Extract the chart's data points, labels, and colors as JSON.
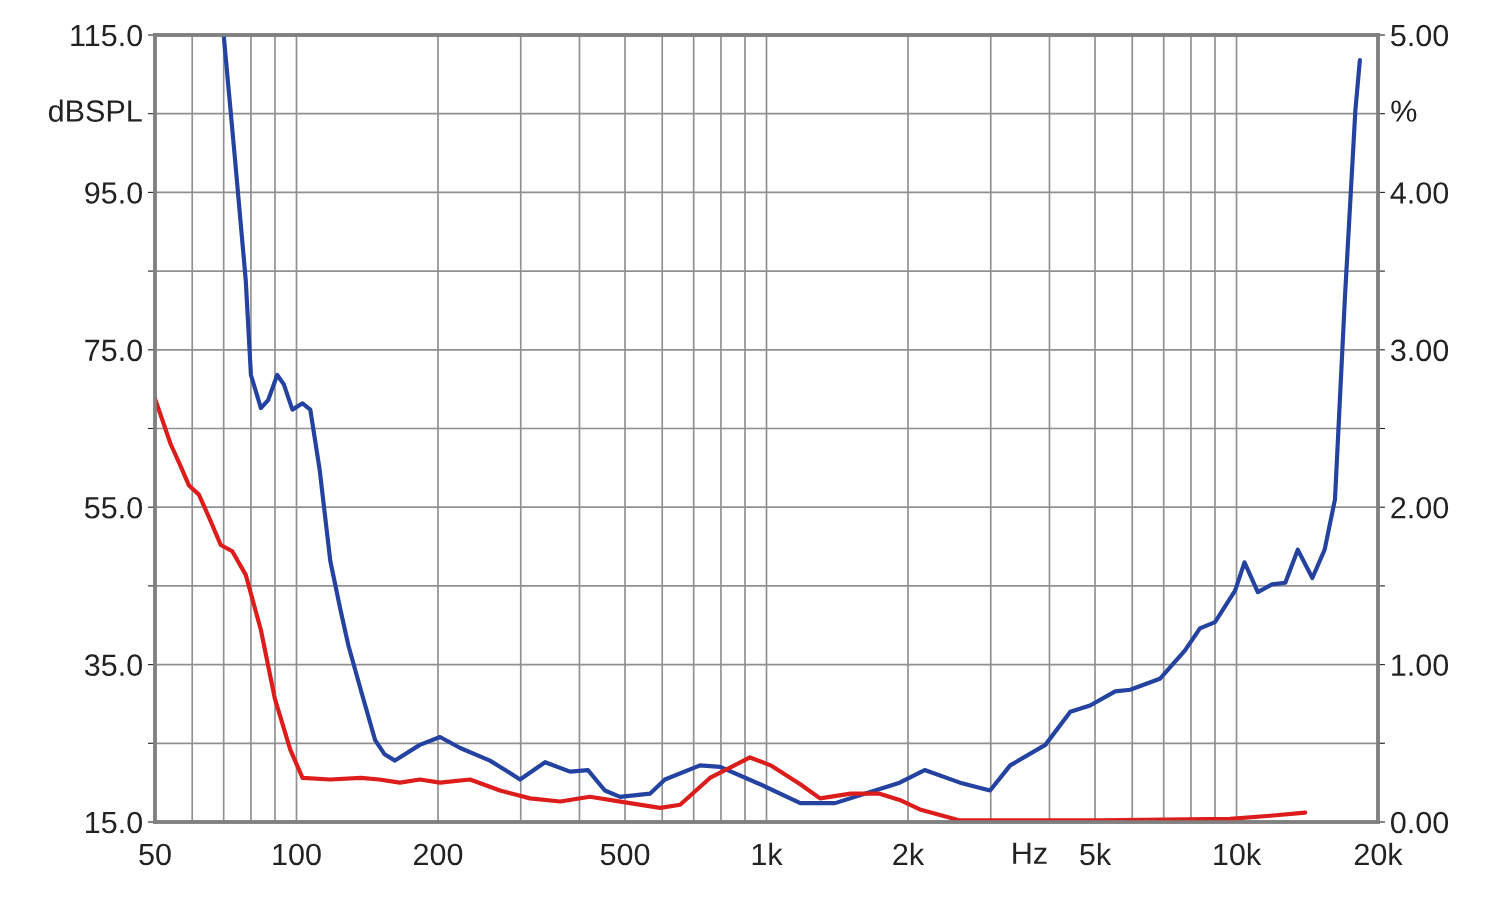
{
  "chart_data": {
    "type": "line",
    "xlabel": "Hz",
    "ylabel": "dBSPL",
    "y2label": "%",
    "log": "x",
    "grid": true,
    "marker": "none",
    "line_style": "solid",
    "xlim": [
      50,
      20000
    ],
    "xticks": [
      50,
      {
        "value": 60,
        "label": null
      },
      {
        "value": 70,
        "label": null
      },
      {
        "value": 80,
        "label": null
      },
      {
        "value": 90,
        "label": null
      },
      100,
      200,
      {
        "value": 300,
        "label": null
      },
      {
        "value": 400,
        "label": null
      },
      500,
      {
        "value": 600,
        "label": null
      },
      {
        "value": 700,
        "label": null
      },
      {
        "value": 800,
        "label": null
      },
      {
        "value": 900,
        "label": null
      },
      {
        "value": 1000,
        "label": "1k"
      },
      {
        "value": 2000,
        "label": "2k"
      },
      {
        "value": 3000,
        "label": null
      },
      {
        "value": 4000,
        "label": null
      },
      {
        "value": 5000,
        "label": "5k"
      },
      {
        "value": 6000,
        "label": null
      },
      {
        "value": 7000,
        "label": null
      },
      {
        "value": 8000,
        "label": null
      },
      {
        "value": 9000,
        "label": null
      },
      {
        "value": 10000,
        "label": "10k"
      },
      {
        "value": 20000,
        "label": "20k"
      }
    ],
    "ylim": [
      15,
      115
    ],
    "yticks": [
      {
        "value": 15,
        "label": "15.0"
      },
      {
        "value": 25,
        "label": null
      },
      {
        "value": 35,
        "label": "35.0"
      },
      {
        "value": 45,
        "label": null
      },
      {
        "value": 55,
        "label": "55.0"
      },
      {
        "value": 65,
        "label": null
      },
      {
        "value": 75,
        "label": "75.0"
      },
      {
        "value": 85,
        "label": null
      },
      {
        "value": 95,
        "label": "95.0"
      },
      {
        "value": 105,
        "label": null
      },
      {
        "value": 115,
        "label": "115.0"
      }
    ],
    "y2lim": [
      0,
      5
    ],
    "y2ticks": [
      {
        "value": 0,
        "label": "0.00"
      },
      {
        "value": 0.5,
        "label": null
      },
      {
        "value": 1,
        "label": "1.00"
      },
      {
        "value": 1.5,
        "label": null
      },
      {
        "value": 2,
        "label": "2.00"
      },
      {
        "value": 2.5,
        "label": null
      },
      {
        "value": 3,
        "label": "3.00"
      },
      {
        "value": 3.5,
        "label": null
      },
      {
        "value": 4,
        "label": "4.00"
      },
      {
        "value": 4.5,
        "label": null
      },
      {
        "value": 5,
        "label": "5.00"
      }
    ],
    "series": [
      {
        "axis": "y2",
        "color": "#2442a0",
        "x": [
          70,
          74,
          78,
          80,
          84,
          87,
          91,
          94,
          98,
          103,
          107,
          112,
          118,
          124,
          129,
          137,
          147,
          154,
          162,
          183,
          202,
          223,
          258,
          278,
          299,
          338,
          382,
          417,
          453,
          488,
          565,
          608,
          722,
          797,
          969,
          1180,
          1400,
          1580,
          1920,
          2170,
          2580,
          2990,
          3300,
          3920,
          4430,
          4880,
          5520,
          5940,
          6870,
          7770,
          8360,
          9000,
          9930,
          10400,
          11100,
          11900,
          12700,
          13500,
          14500,
          15400,
          16200,
          17000,
          17900,
          18300
        ],
        "values": [
          5.0,
          4.21,
          3.44,
          2.84,
          2.63,
          2.68,
          2.84,
          2.78,
          2.62,
          2.66,
          2.62,
          2.24,
          1.66,
          1.35,
          1.12,
          0.84,
          0.52,
          0.43,
          0.39,
          0.49,
          0.54,
          0.47,
          0.39,
          0.33,
          0.27,
          0.38,
          0.32,
          0.33,
          0.2,
          0.16,
          0.18,
          0.27,
          0.36,
          0.35,
          0.24,
          0.12,
          0.12,
          0.17,
          0.25,
          0.33,
          0.25,
          0.2,
          0.36,
          0.49,
          0.7,
          0.74,
          0.83,
          0.84,
          0.91,
          1.09,
          1.23,
          1.27,
          1.47,
          1.65,
          1.46,
          1.51,
          1.52,
          1.73,
          1.55,
          1.73,
          2.05,
          3.32,
          4.52,
          4.84
        ]
      },
      {
        "axis": "y2",
        "color": "#dd1c1c",
        "x": [
          50,
          54,
          56.5,
          59,
          62,
          65.5,
          69,
          73,
          78,
          84,
          90,
          97,
          103,
          118,
          137,
          150,
          166,
          183,
          202,
          234,
          271,
          314,
          364,
          421,
          512,
          594,
          655,
          758,
          922,
          1020,
          1180,
          1300,
          1510,
          1740,
          1920,
          2120,
          2580,
          3140,
          5130,
          9690,
          11800,
          14000
        ],
        "values": [
          2.69,
          2.4,
          2.27,
          2.14,
          2.08,
          1.92,
          1.76,
          1.72,
          1.57,
          1.22,
          0.78,
          0.46,
          0.28,
          0.27,
          0.28,
          0.27,
          0.25,
          0.27,
          0.25,
          0.27,
          0.2,
          0.15,
          0.13,
          0.16,
          0.12,
          0.09,
          0.11,
          0.28,
          0.41,
          0.36,
          0.24,
          0.15,
          0.18,
          0.18,
          0.14,
          0.08,
          0.01,
          0.01,
          0.01,
          0.02,
          0.04,
          0.06
        ]
      }
    ]
  }
}
